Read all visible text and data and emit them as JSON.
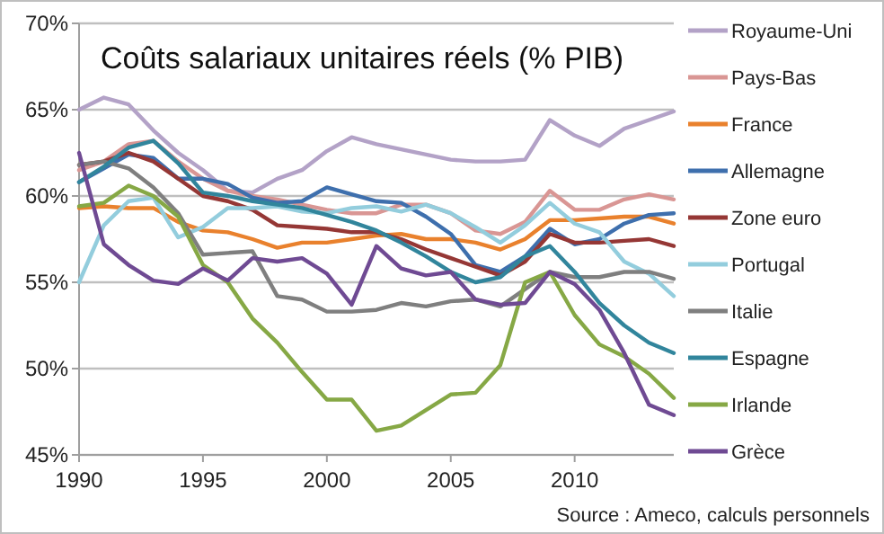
{
  "chart_data": {
    "type": "line",
    "title": "Coûts salariaux unitaires réels (% PIB)",
    "annotations": [
      "Source : Ameco, calculs personnels"
    ],
    "x": [
      1990,
      1991,
      1992,
      1993,
      1994,
      1995,
      1996,
      1997,
      1998,
      1999,
      2000,
      2001,
      2002,
      2003,
      2004,
      2005,
      2006,
      2007,
      2008,
      2009,
      2010,
      2011,
      2012,
      2013,
      2014
    ],
    "xlim": [
      1990,
      2014
    ],
    "xticks": [
      1990,
      1995,
      2000,
      2005,
      2010
    ],
    "ylim": [
      45,
      70
    ],
    "yticks": [
      {
        "value": 45,
        "label": "45%"
      },
      {
        "value": 50,
        "label": "50%"
      },
      {
        "value": 55,
        "label": "55%"
      },
      {
        "value": 60,
        "label": "60%"
      },
      {
        "value": 65,
        "label": "65%"
      },
      {
        "value": 70,
        "label": "70%"
      }
    ],
    "grid": "y",
    "legend": "right",
    "marker": "none",
    "line_style": "solid",
    "series": [
      {
        "name": "Royaume-Uni",
        "color": "#b3a2c7",
        "values": [
          65.0,
          65.7,
          65.3,
          63.8,
          62.5,
          61.5,
          60.3,
          60.2,
          61.0,
          61.5,
          62.6,
          63.4,
          63.0,
          62.7,
          62.4,
          62.1,
          62.0,
          62.0,
          62.1,
          64.4,
          63.5,
          62.9,
          63.9,
          64.4,
          64.9
        ]
      },
      {
        "name": "Pays-Bas",
        "color": "#d99694",
        "values": [
          61.5,
          62.0,
          63.0,
          63.2,
          62.0,
          61.0,
          60.3,
          60.0,
          59.8,
          59.5,
          59.2,
          59.0,
          59.0,
          59.5,
          59.5,
          59.0,
          58.0,
          57.8,
          58.5,
          60.3,
          59.2,
          59.2,
          59.8,
          60.1,
          59.8
        ]
      },
      {
        "name": "France",
        "color": "#e9812d",
        "values": [
          59.3,
          59.4,
          59.3,
          59.3,
          58.5,
          58.0,
          57.9,
          57.5,
          57.0,
          57.3,
          57.3,
          57.5,
          57.7,
          57.8,
          57.5,
          57.5,
          57.3,
          56.9,
          57.5,
          58.6,
          58.6,
          58.7,
          58.8,
          58.8,
          58.4
        ]
      },
      {
        "name": "Allemagne",
        "color": "#3e6fad",
        "values": [
          60.8,
          61.6,
          62.4,
          62.2,
          61.0,
          61.0,
          60.7,
          59.9,
          59.6,
          59.7,
          60.5,
          60.1,
          59.7,
          59.6,
          58.8,
          57.8,
          56.0,
          55.6,
          56.5,
          58.1,
          57.2,
          57.5,
          58.4,
          58.9,
          59.0
        ]
      },
      {
        "name": "Zone euro",
        "color": "#953735",
        "values": [
          61.8,
          62.0,
          62.5,
          62.0,
          61.0,
          60.0,
          59.7,
          59.2,
          58.3,
          58.2,
          58.1,
          57.9,
          57.9,
          57.5,
          56.9,
          56.4,
          55.9,
          55.4,
          56.2,
          57.8,
          57.3,
          57.3,
          57.4,
          57.5,
          57.1
        ]
      },
      {
        "name": "Portugal",
        "color": "#93cddd",
        "values": [
          55.0,
          58.3,
          59.7,
          59.9,
          57.6,
          58.2,
          59.3,
          59.3,
          59.4,
          59.1,
          59.0,
          59.3,
          59.4,
          59.1,
          59.5,
          59.0,
          58.2,
          57.3,
          58.3,
          59.6,
          58.4,
          57.9,
          56.2,
          55.5,
          54.2
        ]
      },
      {
        "name": "Italie",
        "color": "#7f7f7f",
        "values": [
          61.8,
          62.0,
          61.6,
          60.5,
          59.0,
          56.6,
          56.7,
          56.8,
          54.2,
          54.0,
          53.3,
          53.3,
          53.4,
          53.8,
          53.6,
          53.9,
          54.0,
          53.6,
          54.6,
          55.6,
          55.3,
          55.3,
          55.6,
          55.6,
          55.2
        ]
      },
      {
        "name": "Espagne",
        "color": "#31859c",
        "values": [
          60.8,
          61.7,
          62.8,
          63.2,
          61.9,
          60.2,
          60.0,
          59.7,
          59.5,
          59.3,
          58.9,
          58.5,
          58.0,
          57.3,
          56.5,
          55.6,
          55.0,
          55.3,
          56.5,
          57.1,
          55.6,
          53.8,
          52.5,
          51.5,
          50.9
        ]
      },
      {
        "name": "Irlande",
        "color": "#86a845",
        "values": [
          59.4,
          59.6,
          60.6,
          60.0,
          58.8,
          56.0,
          55.0,
          52.9,
          51.5,
          49.8,
          48.2,
          48.2,
          46.4,
          46.7,
          47.6,
          48.5,
          48.6,
          50.2,
          55.0,
          55.6,
          53.1,
          51.4,
          50.7,
          49.7,
          48.3
        ]
      },
      {
        "name": "Grèce",
        "color": "#6f4a93",
        "values": [
          62.5,
          57.2,
          56.0,
          55.1,
          54.9,
          55.8,
          55.1,
          56.4,
          56.2,
          56.4,
          55.5,
          53.7,
          57.1,
          55.8,
          55.4,
          55.6,
          54.0,
          53.7,
          53.8,
          55.6,
          54.9,
          53.4,
          50.9,
          47.9,
          47.3
        ]
      }
    ]
  }
}
